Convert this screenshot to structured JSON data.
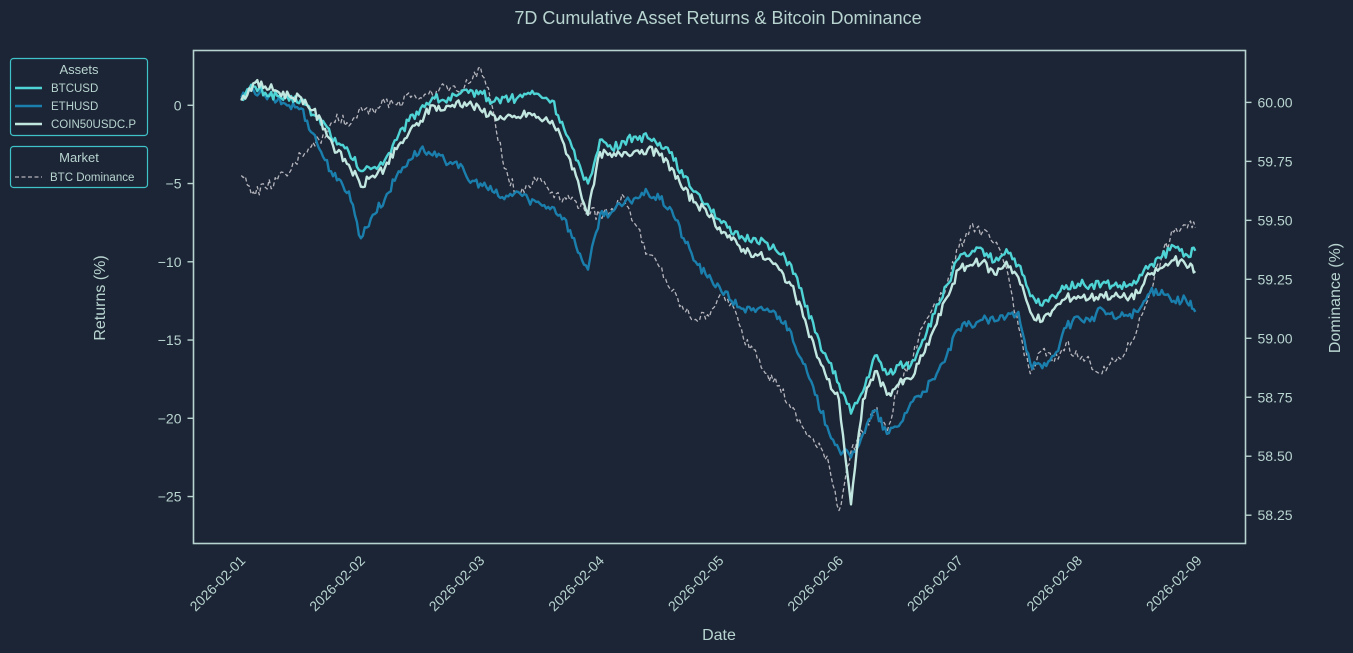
{
  "chart_data": {
    "type": "line",
    "title": "7D Cumulative Asset Returns & Bitcoin Dominance",
    "xlabel": "Date",
    "ylabel": "Returns (%)",
    "ylabel_right": "Dominance (%)",
    "x_tick_labels": [
      "2026-02-01",
      "2026-02-02",
      "2026-02-03",
      "2026-02-04",
      "2026-02-05",
      "2026-02-06",
      "2026-02-07",
      "2026-02-08",
      "2026-02-09"
    ],
    "y_ticks": [
      0,
      -5,
      -10,
      -15,
      -20,
      -25
    ],
    "y_tick_labels": [
      "0",
      "−5",
      "−10",
      "−15",
      "−20",
      "−25"
    ],
    "ylim": [
      -28,
      3.5
    ],
    "y2_ticks": [
      60.0,
      59.75,
      59.5,
      59.25,
      59.0,
      58.75,
      58.5,
      58.25
    ],
    "y2_tick_labels": [
      "60.00",
      "59.75",
      "59.50",
      "59.25",
      "59.00",
      "58.75",
      "58.50",
      "58.25"
    ],
    "y2lim": [
      58.13,
      60.22
    ],
    "xlim_days": [
      -0.4,
      8.4
    ],
    "grid": false,
    "legends": [
      {
        "title": "Assets",
        "placement": "outside-top-left",
        "entries": [
          "BTCUSD",
          "ETHUSD",
          "COIN50USDC.P"
        ]
      },
      {
        "title": "Market",
        "placement": "outside-top-left",
        "entries": [
          "BTC Dominance"
        ]
      }
    ],
    "x_days": [
      0.0,
      0.1,
      0.2,
      0.3,
      0.4,
      0.5,
      0.6,
      0.7,
      0.8,
      0.9,
      1.0,
      1.1,
      1.2,
      1.3,
      1.4,
      1.5,
      1.6,
      1.7,
      1.8,
      1.9,
      2.0,
      2.1,
      2.2,
      2.3,
      2.4,
      2.5,
      2.6,
      2.7,
      2.8,
      2.9,
      3.0,
      3.1,
      3.2,
      3.3,
      3.4,
      3.5,
      3.6,
      3.7,
      3.8,
      3.9,
      4.0,
      4.1,
      4.2,
      4.3,
      4.4,
      4.5,
      4.6,
      4.7,
      4.8,
      4.9,
      5.0,
      5.1,
      5.2,
      5.3,
      5.4,
      5.5,
      5.6,
      5.7,
      5.8,
      5.9,
      6.0,
      6.1,
      6.2,
      6.3,
      6.4,
      6.5,
      6.6,
      6.7,
      6.8,
      6.9,
      7.0,
      7.1,
      7.2,
      7.3,
      7.4,
      7.5,
      7.6,
      7.7,
      7.8,
      7.9,
      7.98
    ],
    "series": [
      {
        "name": "BTCUSD",
        "axis": "left",
        "color": "#4fd4d6",
        "style": "solid",
        "values": [
          0.5,
          1.2,
          0.8,
          0.6,
          0.3,
          0.4,
          -0.6,
          -1.2,
          -2.5,
          -3.0,
          -4.2,
          -4.0,
          -3.5,
          -2.2,
          -1.0,
          -0.2,
          0.5,
          0.3,
          0.6,
          0.8,
          0.9,
          0.2,
          0.5,
          0.4,
          0.8,
          0.6,
          0.3,
          -1.5,
          -3.5,
          -5.0,
          -2.2,
          -2.8,
          -2.3,
          -2.0,
          -2.1,
          -2.4,
          -3.0,
          -4.6,
          -5.5,
          -6.3,
          -7.3,
          -8.2,
          -8.5,
          -8.5,
          -8.8,
          -9.5,
          -10.2,
          -12.3,
          -14.5,
          -16.2,
          -17.8,
          -19.7,
          -18.3,
          -16.0,
          -17.2,
          -16.6,
          -16.6,
          -15.0,
          -13.3,
          -11.5,
          -9.8,
          -9.5,
          -9.2,
          -10.0,
          -9.2,
          -10.2,
          -12.2,
          -12.8,
          -12.2,
          -11.5,
          -11.4,
          -11.5,
          -11.4,
          -11.5,
          -11.6,
          -11.2,
          -10.2,
          -9.7,
          -9.0,
          -9.5,
          -9.3
        ]
      },
      {
        "name": "ETHUSD",
        "axis": "left",
        "color": "#1a7fad",
        "style": "solid",
        "values": [
          0.5,
          1.0,
          0.6,
          0.3,
          0.0,
          -0.2,
          -1.8,
          -3.5,
          -4.8,
          -5.5,
          -8.5,
          -7.0,
          -6.0,
          -4.5,
          -3.5,
          -2.8,
          -3.2,
          -3.5,
          -3.6,
          -4.8,
          -5.0,
          -5.5,
          -6.0,
          -5.5,
          -6.0,
          -6.3,
          -6.5,
          -7.2,
          -9.0,
          -10.5,
          -7.0,
          -6.8,
          -6.3,
          -5.9,
          -5.6,
          -6.0,
          -6.7,
          -8.5,
          -10.0,
          -11.0,
          -11.6,
          -12.5,
          -13.0,
          -13.2,
          -13.0,
          -13.5,
          -14.5,
          -16.5,
          -18.5,
          -20.5,
          -22.0,
          -22.5,
          -21.0,
          -19.5,
          -21.0,
          -20.5,
          -19.0,
          -18.3,
          -17.5,
          -16.0,
          -14.3,
          -14.0,
          -13.7,
          -13.8,
          -13.5,
          -13.2,
          -16.5,
          -16.8,
          -16.0,
          -14.2,
          -13.5,
          -13.8,
          -13.0,
          -13.6,
          -13.4,
          -13.2,
          -12.0,
          -11.8,
          -12.5,
          -12.4,
          -13.2
        ]
      },
      {
        "name": "COIN50USDC.P",
        "axis": "left",
        "color": "#c2e6e0",
        "style": "solid",
        "values": [
          0.3,
          1.4,
          1.2,
          0.9,
          0.6,
          0.5,
          -0.3,
          -1.5,
          -3.0,
          -3.8,
          -5.2,
          -4.5,
          -4.0,
          -2.8,
          -1.8,
          -1.0,
          0.0,
          -0.3,
          0.2,
          0.1,
          -0.3,
          -0.6,
          -0.9,
          -0.8,
          -0.5,
          -0.9,
          -1.0,
          -2.5,
          -4.5,
          -7.0,
          -3.0,
          -3.3,
          -3.0,
          -2.9,
          -2.8,
          -3.2,
          -4.0,
          -5.4,
          -6.2,
          -7.0,
          -7.8,
          -8.6,
          -9.2,
          -9.5,
          -9.8,
          -10.5,
          -11.5,
          -13.5,
          -15.6,
          -17.5,
          -18.8,
          -25.5,
          -18.8,
          -17.0,
          -18.5,
          -17.8,
          -17.5,
          -16.0,
          -14.2,
          -12.3,
          -10.5,
          -10.2,
          -10.0,
          -10.8,
          -10.0,
          -11.0,
          -13.2,
          -13.8,
          -13.0,
          -12.3,
          -12.2,
          -12.3,
          -12.1,
          -12.2,
          -12.3,
          -12.0,
          -10.8,
          -10.4,
          -9.9,
          -10.2,
          -10.6
        ]
      },
      {
        "name": "BTC Dominance",
        "axis": "right",
        "color": "#b5b5bd",
        "style": "dashed",
        "values": [
          59.69,
          59.62,
          59.64,
          59.67,
          59.7,
          59.78,
          59.83,
          59.85,
          59.95,
          59.9,
          59.98,
          59.97,
          60.0,
          59.99,
          60.04,
          60.02,
          60.03,
          60.07,
          60.05,
          60.08,
          60.15,
          59.98,
          59.72,
          59.62,
          59.65,
          59.68,
          59.62,
          59.6,
          59.58,
          59.54,
          59.52,
          59.55,
          59.6,
          59.48,
          59.36,
          59.3,
          59.2,
          59.12,
          59.08,
          59.1,
          59.18,
          59.15,
          59.0,
          58.95,
          58.85,
          58.8,
          58.7,
          58.62,
          58.55,
          58.5,
          58.27,
          58.52,
          58.6,
          58.7,
          58.6,
          58.8,
          58.9,
          59.05,
          59.15,
          59.22,
          59.38,
          59.48,
          59.45,
          59.4,
          59.3,
          59.05,
          58.85,
          58.95,
          58.9,
          58.98,
          58.92,
          58.9,
          58.85,
          58.9,
          58.94,
          59.05,
          59.2,
          59.35,
          59.45,
          59.48,
          59.47
        ]
      }
    ]
  }
}
